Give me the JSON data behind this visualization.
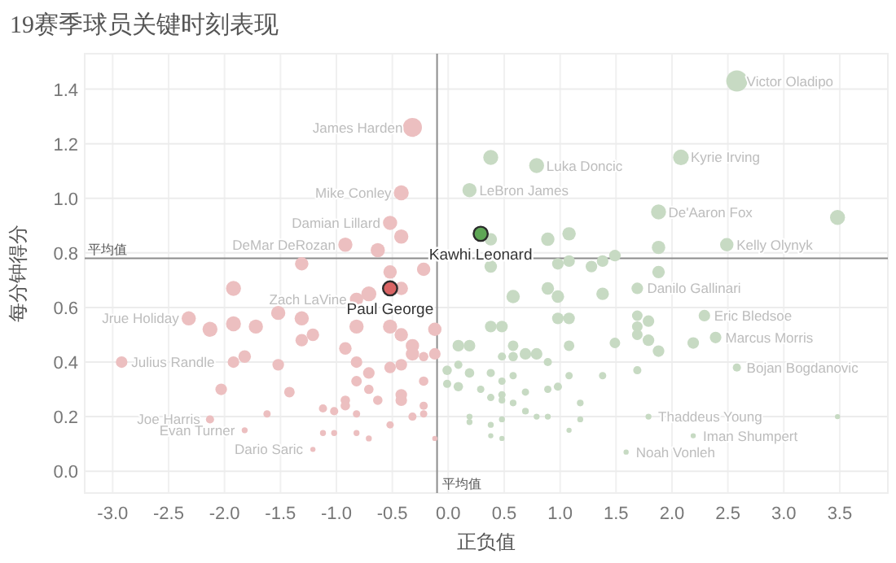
{
  "chart_data": {
    "type": "bubble",
    "title": "19赛季球员关键时刻表现",
    "xlabel": "正负值",
    "ylabel": "每分钟得分",
    "xlim": [
      -3.25,
      3.93
    ],
    "ylim": [
      -0.08,
      1.53
    ],
    "xticks": [
      {
        "value": -3,
        "label": "-3.0"
      },
      {
        "value": -2.5,
        "label": "-2.5"
      },
      {
        "value": -2,
        "label": "-2.0"
      },
      {
        "value": -1.5,
        "label": "-1.5"
      },
      {
        "value": -1,
        "label": "-1.0"
      },
      {
        "value": -0.5,
        "label": "-0.5"
      },
      {
        "value": 0,
        "label": "0.0"
      },
      {
        "value": 0.5,
        "label": "0.5"
      },
      {
        "value": 1,
        "label": "1.0"
      },
      {
        "value": 1.5,
        "label": "1.5"
      },
      {
        "value": 2,
        "label": "2.0"
      },
      {
        "value": 2.5,
        "label": "2.5"
      },
      {
        "value": 3,
        "label": "3.0"
      },
      {
        "value": 3.5,
        "label": "3.5"
      }
    ],
    "yticks": [
      {
        "value": 0,
        "label": "0.0"
      },
      0.2,
      0.4,
      0.6,
      0.8,
      {
        "value": 1,
        "label": "1.0"
      },
      1.2,
      1.4
    ],
    "grid": true,
    "ref_lines": [
      {
        "axis": "y",
        "value": 0.78,
        "label": "平均值",
        "color": "#8c8c8c"
      },
      {
        "axis": "x",
        "value": -0.1,
        "label": "平均值",
        "color": "#8c8c8c"
      }
    ],
    "series": [
      {
        "color": "#ecbfc0",
        "x": [
          -0.32,
          -0.42,
          -0.52,
          -0.42,
          -0.92,
          -0.63,
          -1.31,
          -0.52,
          -0.22,
          -1.92,
          -0.71,
          -0.42,
          -0.82,
          -2.32,
          -2.13,
          -1.92,
          -1.72,
          -1.52,
          -1.31,
          -1.31,
          -1.21,
          -0.82,
          -0.52,
          -0.42,
          -0.32,
          -0.32,
          -0.12,
          -0.12,
          -0.22,
          -0.92,
          -2.92,
          -1.92,
          -1.82,
          -1.52,
          -0.82,
          -0.71,
          -0.82,
          -0.52,
          -0.42,
          -0.22,
          -0.71,
          -0.42,
          -0.42,
          -0.63,
          -0.92,
          -0.92,
          -2.03,
          -1.42,
          -2.13,
          -1.62,
          -1.12,
          -1.02,
          -0.82,
          -0.22,
          -0.22,
          -0.32,
          -0.52,
          -1.82,
          -1.12,
          -1.02,
          -0.82,
          -0.71,
          -1.21,
          -0.12
        ],
        "values": [
          1.26,
          1.02,
          0.91,
          0.86,
          0.83,
          0.81,
          0.76,
          0.73,
          0.74,
          0.67,
          0.65,
          0.67,
          0.63,
          0.56,
          0.52,
          0.54,
          0.53,
          0.58,
          0.56,
          0.48,
          0.5,
          0.53,
          0.53,
          0.5,
          0.46,
          0.43,
          0.52,
          0.43,
          0.42,
          0.45,
          0.4,
          0.4,
          0.42,
          0.39,
          0.4,
          0.36,
          0.33,
          0.38,
          0.39,
          0.33,
          0.3,
          0.28,
          0.26,
          0.26,
          0.26,
          0.24,
          0.3,
          0.29,
          0.19,
          0.21,
          0.23,
          0.22,
          0.21,
          0.24,
          0.21,
          0.2,
          0.17,
          0.15,
          0.14,
          0.14,
          0.14,
          0.12,
          0.08,
          0.12
        ],
        "sizes": [
          0.8,
          0.5,
          0.45,
          0.45,
          0.45,
          0.45,
          0.4,
          0.4,
          0.4,
          0.5,
          0.5,
          0.4,
          0.4,
          0.45,
          0.5,
          0.5,
          0.45,
          0.45,
          0.45,
          0.35,
          0.35,
          0.45,
          0.45,
          0.4,
          0.4,
          0.4,
          0.4,
          0.3,
          0.2,
          0.35,
          0.3,
          0.3,
          0.35,
          0.3,
          0.3,
          0.3,
          0.25,
          0.3,
          0.3,
          0.2,
          0.2,
          0.3,
          0.3,
          0.2,
          0.2,
          0.2,
          0.3,
          0.25,
          0.15,
          0.12,
          0.15,
          0.15,
          0.12,
          0.15,
          0.12,
          0.15,
          0.12,
          0.08,
          0.08,
          0.08,
          0.08,
          0.08,
          0.06,
          0.06
        ]
      },
      {
        "color": "#c7dac3",
        "x": [
          2.58,
          0.38,
          0.79,
          2.08,
          0.19,
          1.88,
          3.48,
          0.38,
          0.89,
          1.08,
          1.88,
          2.49,
          0.98,
          1.08,
          1.28,
          1.38,
          1.49,
          0.38,
          1.88,
          0.89,
          0.98,
          0.58,
          1.38,
          1.69,
          2.29,
          2.39,
          2.19,
          1.69,
          1.79,
          1.69,
          1.69,
          1.79,
          1.88,
          1.49,
          0.98,
          1.08,
          0.38,
          0.48,
          0.09,
          0.19,
          0.58,
          1.08,
          0.69,
          0.79,
          0.58,
          0.48,
          0.89,
          -0.01,
          0.09,
          0.19,
          0.38,
          0.58,
          0.48,
          1.08,
          1.38,
          1.69,
          2.58,
          -0.01,
          0.09,
          0.29,
          0.38,
          0.48,
          0.69,
          0.89,
          0.98,
          0.48,
          0.58,
          0.69,
          1.18,
          0.19,
          0.19,
          0.38,
          0.48,
          0.79,
          0.89,
          1.18,
          1.79,
          3.48,
          0.38,
          0.48,
          1.08,
          1.59,
          2.19
        ],
        "values": [
          1.43,
          1.15,
          1.12,
          1.15,
          1.03,
          0.95,
          0.93,
          0.85,
          0.85,
          0.87,
          0.82,
          0.83,
          0.76,
          0.77,
          0.75,
          0.77,
          0.79,
          0.75,
          0.73,
          0.67,
          0.64,
          0.64,
          0.65,
          0.67,
          0.57,
          0.49,
          0.47,
          0.57,
          0.55,
          0.53,
          0.5,
          0.48,
          0.44,
          0.47,
          0.56,
          0.56,
          0.53,
          0.53,
          0.46,
          0.46,
          0.46,
          0.46,
          0.43,
          0.43,
          0.42,
          0.42,
          0.4,
          0.37,
          0.39,
          0.36,
          0.36,
          0.35,
          0.33,
          0.35,
          0.35,
          0.37,
          0.38,
          0.32,
          0.31,
          0.3,
          0.27,
          0.28,
          0.29,
          0.3,
          0.31,
          0.26,
          0.25,
          0.22,
          0.25,
          0.2,
          0.18,
          0.17,
          0.19,
          0.2,
          0.2,
          0.19,
          0.2,
          0.2,
          0.13,
          0.12,
          0.15,
          0.07,
          0.13
        ],
        "sizes": [
          1,
          0.5,
          0.5,
          0.55,
          0.45,
          0.5,
          0.5,
          0.35,
          0.4,
          0.4,
          0.4,
          0.4,
          0.3,
          0.3,
          0.3,
          0.3,
          0.3,
          0.35,
          0.35,
          0.35,
          0.35,
          0.4,
          0.35,
          0.3,
          0.3,
          0.3,
          0.3,
          0.25,
          0.3,
          0.25,
          0.25,
          0.3,
          0.3,
          0.25,
          0.3,
          0.3,
          0.3,
          0.3,
          0.3,
          0.3,
          0.25,
          0.25,
          0.3,
          0.3,
          0.2,
          0.15,
          0.15,
          0.2,
          0.15,
          0.2,
          0.15,
          0.12,
          0.12,
          0.12,
          0.12,
          0.15,
          0.15,
          0.15,
          0.2,
          0.12,
          0.12,
          0.12,
          0.12,
          0.12,
          0.15,
          0.1,
          0.1,
          0.1,
          0.1,
          0.08,
          0.08,
          0.08,
          0.08,
          0.08,
          0.08,
          0.08,
          0.08,
          0.06,
          0.06,
          0.06,
          0.06,
          0.06,
          0.06
        ]
      },
      {
        "name": "Paul George",
        "color": "#d96464",
        "x": [
          -0.52
        ],
        "values": [
          0.67
        ],
        "sizes": [
          0.45
        ]
      },
      {
        "name": "Kawhi Leonard",
        "color": "#5ea655",
        "x": [
          0.29
        ],
        "values": [
          0.87
        ],
        "sizes": [
          0.45
        ]
      }
    ],
    "annotations": [
      {
        "text": "James Harden",
        "x": -0.32,
        "y": 1.26
      },
      {
        "text": "Mike Conley",
        "x": -0.42,
        "y": 1.02
      },
      {
        "text": "Damian Lillard",
        "x": -0.52,
        "y": 0.91
      },
      {
        "text": "DeMar DeRozan",
        "x": -0.92,
        "y": 0.83
      },
      {
        "text": "LeBron James",
        "x": 0.19,
        "y": 1.03
      },
      {
        "text": "Luka Doncic",
        "x": 0.79,
        "y": 1.12
      },
      {
        "text": "Victor Oladipo",
        "x": 2.58,
        "y": 1.43
      },
      {
        "text": "Kyrie Irving",
        "x": 2.08,
        "y": 1.15
      },
      {
        "text": "De'Aaron Fox",
        "x": 1.88,
        "y": 0.95
      },
      {
        "text": "Kelly Olynyk",
        "x": 2.49,
        "y": 0.83
      },
      {
        "text": "Zach LaVine",
        "x": -0.82,
        "y": 0.63
      },
      {
        "text": "Jrue Holiday",
        "x": -2.32,
        "y": 0.56
      },
      {
        "text": "Julius Randle",
        "x": -2.92,
        "y": 0.4
      },
      {
        "text": "Joe Harris",
        "x": -2.13,
        "y": 0.19
      },
      {
        "text": "Evan Turner",
        "x": -1.82,
        "y": 0.15
      },
      {
        "text": "Dario Saric",
        "x": -1.21,
        "y": 0.08
      },
      {
        "text": "Danilo Gallinari",
        "x": 1.69,
        "y": 0.67
      },
      {
        "text": "Eric Bledsoe",
        "x": 2.29,
        "y": 0.57
      },
      {
        "text": "Marcus Morris",
        "x": 2.39,
        "y": 0.49
      },
      {
        "text": "Bojan Bogdanovic",
        "x": 2.58,
        "y": 0.38
      },
      {
        "text": "Thaddeus Young",
        "x": 1.79,
        "y": 0.2
      },
      {
        "text": "Noah Vonleh",
        "x": 1.59,
        "y": 0.07
      },
      {
        "text": "Iman Shumpert",
        "x": 2.19,
        "y": 0.13
      }
    ]
  }
}
